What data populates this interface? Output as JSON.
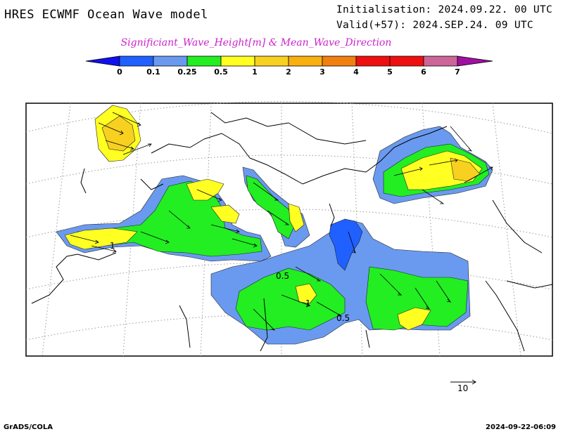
{
  "header": {
    "title": "HRES ECWMF Ocean Wave model",
    "initialisation": "Initialisation: 2024.09.22. 00 UTC",
    "valid": "Valid(+57): 2024.SEP.24. 09 UTC",
    "subtitle": "Significiant_Wave_Height[m] & Mean_Wave_Direction"
  },
  "legend": {
    "labels": [
      "0",
      "0.1",
      "0.25",
      "0.5",
      "1",
      "2",
      "3",
      "4",
      "5",
      "6",
      "7"
    ],
    "colors": [
      "#1010ee",
      "#2060ff",
      "#6a9af0",
      "#22ee22",
      "#ffff22",
      "#f8d020",
      "#f8b010",
      "#f08010",
      "#ee1010",
      "#cc6699",
      "#a010a0"
    ]
  },
  "map": {
    "contour_labels": [
      "0.5",
      "0.5",
      "1",
      "1"
    ]
  },
  "reference_vector": {
    "label": "10"
  },
  "footer": {
    "left": "GrADS/COLA",
    "right": "2024-09-22-06:09"
  }
}
